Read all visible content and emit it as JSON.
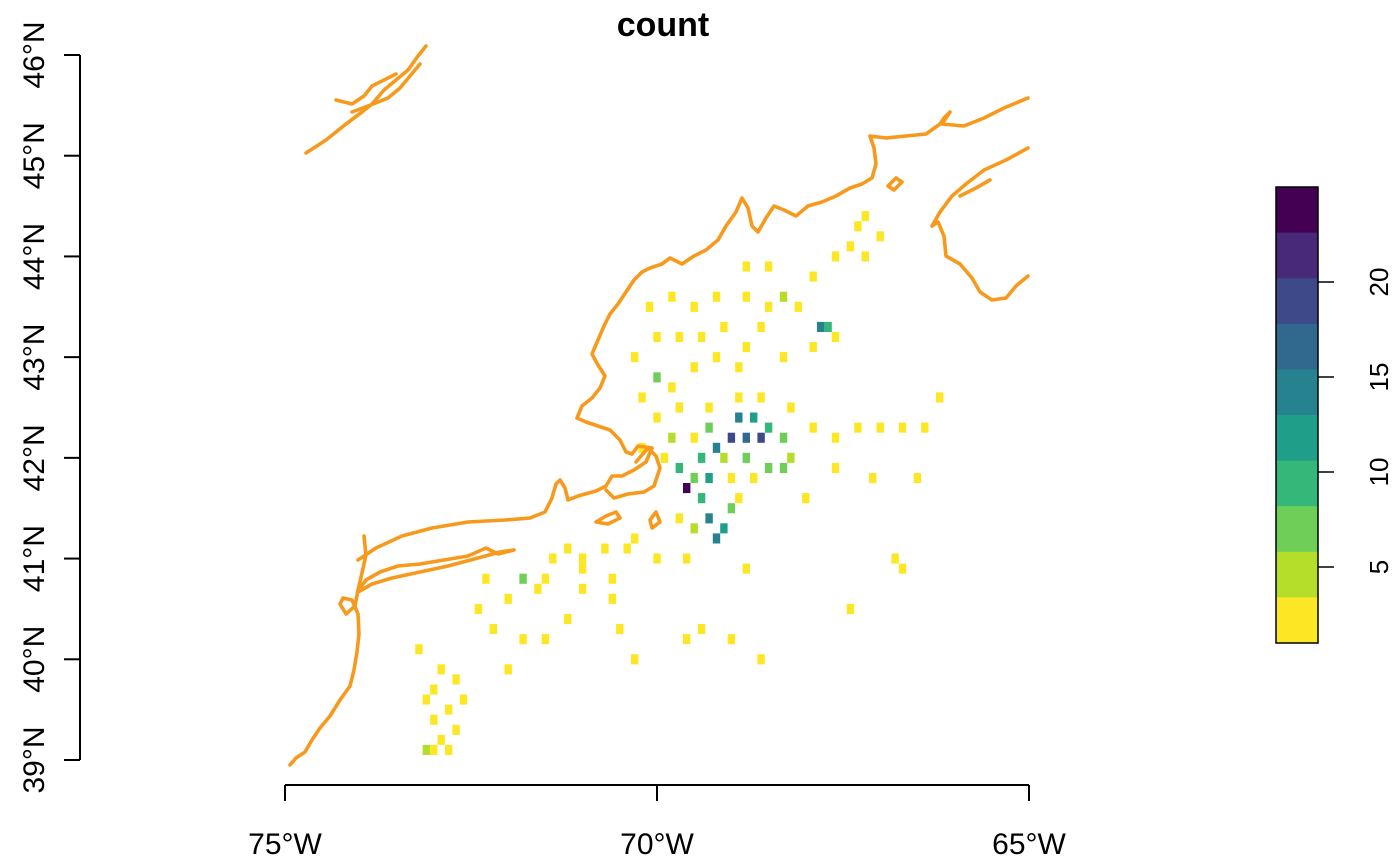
{
  "title": "count",
  "axes": {
    "x_ticks": [
      "75°W",
      "70°W",
      "65°W"
    ],
    "y_ticks": [
      "39°N",
      "40°N",
      "41°N",
      "42°N",
      "43°N",
      "44°N",
      "45°N",
      "46°N"
    ]
  },
  "colors": {
    "coastline": "#f7991c",
    "palette": [
      "#fde725",
      "#b5de2b",
      "#6ece58",
      "#35b779",
      "#1f9e89",
      "#26828e",
      "#31688e",
      "#3e4989",
      "#482878",
      "#440154"
    ]
  },
  "legend": {
    "labels": [
      "5",
      "10",
      "15",
      "20"
    ]
  },
  "chart_data": {
    "type": "heatmap",
    "title": "count",
    "x_range": [
      -75.5,
      -65
    ],
    "y_range": [
      39,
      46
    ],
    "legend_range": [
      1,
      25
    ],
    "legend_ticks": [
      5,
      10,
      15,
      20
    ],
    "cells": [
      [
        -73.0,
        39.1,
        1
      ],
      [
        -72.8,
        39.1,
        1
      ],
      [
        -73.1,
        39.1,
        4
      ],
      [
        -72.9,
        39.2,
        1
      ],
      [
        -72.7,
        39.3,
        2
      ],
      [
        -73.0,
        39.4,
        1
      ],
      [
        -72.8,
        39.5,
        1
      ],
      [
        -73.1,
        39.6,
        1
      ],
      [
        -72.6,
        39.6,
        1
      ],
      [
        -73.0,
        39.7,
        1
      ],
      [
        -72.7,
        39.8,
        1
      ],
      [
        -72.9,
        39.9,
        1
      ],
      [
        -73.2,
        40.1,
        1
      ],
      [
        -72.0,
        39.9,
        1
      ],
      [
        -71.8,
        40.2,
        1
      ],
      [
        -72.2,
        40.3,
        2
      ],
      [
        -71.5,
        40.2,
        1
      ],
      [
        -71.2,
        40.4,
        3
      ],
      [
        -72.4,
        40.5,
        1
      ],
      [
        -72.0,
        40.6,
        1
      ],
      [
        -71.6,
        40.7,
        1
      ],
      [
        -71.0,
        40.7,
        1
      ],
      [
        -72.3,
        40.8,
        1
      ],
      [
        -71.8,
        40.8,
        6
      ],
      [
        -71.5,
        40.8,
        1
      ],
      [
        -71.0,
        40.9,
        1
      ],
      [
        -70.6,
        40.8,
        1
      ],
      [
        -71.4,
        41.0,
        1
      ],
      [
        -71.0,
        41.0,
        1
      ],
      [
        -70.7,
        41.1,
        2
      ],
      [
        -70.4,
        41.1,
        1
      ],
      [
        -71.2,
        41.1,
        1
      ],
      [
        -70.3,
        41.2,
        1
      ],
      [
        -70.6,
        40.6,
        1
      ],
      [
        -70.0,
        41.0,
        1
      ],
      [
        -69.6,
        41.0,
        1
      ],
      [
        -68.8,
        40.9,
        1
      ],
      [
        -70.5,
        40.3,
        1
      ],
      [
        -69.6,
        40.2,
        1
      ],
      [
        -69.0,
        40.2,
        1
      ],
      [
        -69.4,
        40.3,
        1
      ],
      [
        -70.3,
        40.0,
        1
      ],
      [
        -68.6,
        40.0,
        1
      ],
      [
        -67.4,
        40.5,
        1
      ],
      [
        -66.7,
        40.9,
        1
      ],
      [
        -66.8,
        41.0,
        1
      ],
      [
        -69.7,
        41.4,
        1
      ],
      [
        -69.5,
        41.3,
        4
      ],
      [
        -69.2,
        41.2,
        14
      ],
      [
        -69.1,
        41.3,
        11
      ],
      [
        -69.3,
        41.4,
        13
      ],
      [
        -69.0,
        41.5,
        8
      ],
      [
        -69.4,
        41.6,
        9
      ],
      [
        -68.9,
        41.6,
        2
      ],
      [
        -69.6,
        41.7,
        23
      ],
      [
        -69.5,
        41.8,
        7
      ],
      [
        -69.3,
        41.8,
        12
      ],
      [
        -69.0,
        41.8,
        3
      ],
      [
        -68.7,
        41.8,
        1
      ],
      [
        -69.7,
        41.9,
        9
      ],
      [
        -69.4,
        42.0,
        10
      ],
      [
        -69.1,
        42.0,
        4
      ],
      [
        -68.8,
        42.0,
        6
      ],
      [
        -68.5,
        41.9,
        7
      ],
      [
        -68.3,
        41.9,
        8
      ],
      [
        -69.2,
        42.1,
        15
      ],
      [
        -69.0,
        42.2,
        20
      ],
      [
        -68.8,
        42.2,
        16
      ],
      [
        -68.6,
        42.2,
        18
      ],
      [
        -68.9,
        42.4,
        13
      ],
      [
        -68.7,
        42.4,
        11
      ],
      [
        -68.5,
        42.3,
        9
      ],
      [
        -68.3,
        42.2,
        6
      ],
      [
        -68.2,
        42.0,
        4
      ],
      [
        -69.3,
        42.3,
        7
      ],
      [
        -69.5,
        42.2,
        3
      ],
      [
        -69.8,
        42.2,
        5
      ],
      [
        -69.9,
        42.0,
        1
      ],
      [
        -70.2,
        42.1,
        1
      ],
      [
        -70.0,
        42.4,
        1
      ],
      [
        -69.7,
        42.5,
        1
      ],
      [
        -69.3,
        42.5,
        1
      ],
      [
        -68.9,
        42.6,
        2
      ],
      [
        -68.6,
        42.6,
        1
      ],
      [
        -68.2,
        42.5,
        3
      ],
      [
        -67.9,
        42.3,
        1
      ],
      [
        -67.6,
        42.2,
        1
      ],
      [
        -67.3,
        42.3,
        1
      ],
      [
        -67.0,
        42.3,
        1
      ],
      [
        -66.7,
        42.3,
        1
      ],
      [
        -66.4,
        42.3,
        1
      ],
      [
        -66.2,
        42.6,
        1
      ],
      [
        -66.5,
        41.8,
        1
      ],
      [
        -67.1,
        41.8,
        1
      ],
      [
        -67.6,
        41.9,
        1
      ],
      [
        -68.0,
        41.6,
        1
      ],
      [
        -70.2,
        42.6,
        1
      ],
      [
        -70.0,
        42.8,
        6
      ],
      [
        -69.8,
        42.7,
        1
      ],
      [
        -69.5,
        42.9,
        1
      ],
      [
        -69.2,
        43.0,
        1
      ],
      [
        -68.9,
        42.9,
        1
      ],
      [
        -70.3,
        43.0,
        1
      ],
      [
        -70.0,
        43.2,
        1
      ],
      [
        -69.7,
        43.2,
        1
      ],
      [
        -69.4,
        43.2,
        1
      ],
      [
        -69.1,
        43.3,
        1
      ],
      [
        -68.8,
        43.1,
        1
      ],
      [
        -68.6,
        43.3,
        1
      ],
      [
        -68.3,
        43.0,
        1
      ],
      [
        -67.9,
        43.1,
        1
      ],
      [
        -67.6,
        43.2,
        1
      ],
      [
        -67.8,
        43.3,
        13
      ],
      [
        -67.7,
        43.3,
        9
      ],
      [
        -70.1,
        43.5,
        1
      ],
      [
        -69.8,
        43.6,
        1
      ],
      [
        -69.5,
        43.5,
        1
      ],
      [
        -69.2,
        43.6,
        1
      ],
      [
        -68.8,
        43.6,
        1
      ],
      [
        -68.5,
        43.5,
        1
      ],
      [
        -68.3,
        43.6,
        5
      ],
      [
        -68.1,
        43.5,
        1
      ],
      [
        -67.9,
        43.8,
        1
      ],
      [
        -68.5,
        43.9,
        1
      ],
      [
        -68.8,
        43.9,
        1
      ],
      [
        -67.6,
        44.0,
        1
      ],
      [
        -67.4,
        44.1,
        1
      ],
      [
        -67.2,
        44.0,
        1
      ],
      [
        -67.0,
        44.2,
        1
      ],
      [
        -67.3,
        44.3,
        1
      ],
      [
        -67.2,
        44.4,
        1
      ]
    ]
  }
}
